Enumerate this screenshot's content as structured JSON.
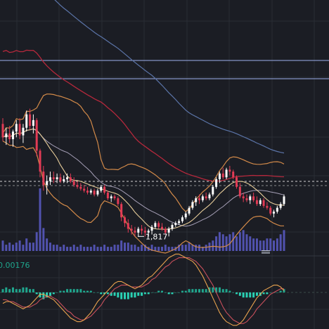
{
  "colors": {
    "background": "#1b1d24",
    "grid": "#2a2d35",
    "up": "#ffffff",
    "down": "#e23b55",
    "hist_pos": "#20a58d",
    "hist_neg": "#2ad0b3",
    "volume": "#5a5cc8",
    "ma_long": "#5b74a8",
    "ma_mid": "#b6283c",
    "bollinger": "#d38a49",
    "ma_short": "#e7cd9a",
    "ma_light": "#a59fb6",
    "macd_line": "#e8a24e",
    "signal_line": "#c9505c",
    "hline": "#9cb0ee",
    "dashed": "#d4d4d4"
  },
  "chart_data": {
    "type": "candlestick",
    "price_annotation": "1,817",
    "indicator_label": "0.00176",
    "candles": [
      {
        "o": 55,
        "h": 58,
        "l": 46,
        "c": 48
      },
      {
        "o": 48,
        "h": 53,
        "l": 44,
        "c": 50
      },
      {
        "o": 50,
        "h": 54,
        "l": 45,
        "c": 47
      },
      {
        "o": 47,
        "h": 52,
        "l": 43,
        "c": 51
      },
      {
        "o": 51,
        "h": 57,
        "l": 48,
        "c": 55
      },
      {
        "o": 55,
        "h": 58,
        "l": 47,
        "c": 49
      },
      {
        "o": 49,
        "h": 55,
        "l": 45,
        "c": 53
      },
      {
        "o": 53,
        "h": 62,
        "l": 51,
        "c": 60
      },
      {
        "o": 60,
        "h": 63,
        "l": 52,
        "c": 54
      },
      {
        "o": 54,
        "h": 60,
        "l": 50,
        "c": 57
      },
      {
        "o": 57,
        "h": 58,
        "l": 38,
        "c": 41
      },
      {
        "o": 41,
        "h": 42,
        "l": 27,
        "c": 30
      },
      {
        "o": 30,
        "h": 33,
        "l": 20,
        "c": 23
      },
      {
        "o": 23,
        "h": 28,
        "l": 18,
        "c": 25
      },
      {
        "o": 25,
        "h": 30,
        "l": 23,
        "c": 27
      },
      {
        "o": 27,
        "h": 30,
        "l": 24,
        "c": 26
      },
      {
        "o": 26,
        "h": 29,
        "l": 24,
        "c": 27
      },
      {
        "o": 27,
        "h": 29,
        "l": 24,
        "c": 25
      },
      {
        "o": 25,
        "h": 28,
        "l": 24,
        "c": 26
      },
      {
        "o": 26,
        "h": 29,
        "l": 24,
        "c": 27
      },
      {
        "o": 27,
        "h": 29,
        "l": 24,
        "c": 25
      },
      {
        "o": 25,
        "h": 27,
        "l": 22,
        "c": 23
      },
      {
        "o": 23,
        "h": 25,
        "l": 21,
        "c": 22
      },
      {
        "o": 22,
        "h": 24,
        "l": 20,
        "c": 21
      },
      {
        "o": 21,
        "h": 23,
        "l": 19,
        "c": 20
      },
      {
        "o": 20,
        "h": 22,
        "l": 18,
        "c": 19
      },
      {
        "o": 19,
        "h": 21,
        "l": 18,
        "c": 20
      },
      {
        "o": 20,
        "h": 21,
        "l": 17,
        "c": 18
      },
      {
        "o": 18,
        "h": 21,
        "l": 17,
        "c": 20
      },
      {
        "o": 20,
        "h": 23,
        "l": 19,
        "c": 22
      },
      {
        "o": 22,
        "h": 23,
        "l": 18,
        "c": 19
      },
      {
        "o": 19,
        "h": 20,
        "l": 15,
        "c": 16
      },
      {
        "o": 16,
        "h": 18,
        "l": 14,
        "c": 17
      },
      {
        "o": 17,
        "h": 18,
        "l": 15,
        "c": 16
      },
      {
        "o": 16,
        "h": 17,
        "l": 12,
        "c": 13
      },
      {
        "o": 13,
        "h": 14,
        "l": 4,
        "c": 6
      },
      {
        "o": 6,
        "h": 7,
        "l": 1,
        "c": 3
      },
      {
        "o": 3,
        "h": 5,
        "l": -2,
        "c": 0
      },
      {
        "o": 0,
        "h": 2,
        "l": -3,
        "c": -1
      },
      {
        "o": -1,
        "h": 1,
        "l": -4,
        "c": -2
      },
      {
        "o": -2,
        "h": 1,
        "l": -4,
        "c": 0
      },
      {
        "o": 0,
        "h": 2,
        "l": -3,
        "c": -1
      },
      {
        "o": -1,
        "h": 1,
        "l": -4,
        "c": -2
      },
      {
        "o": -2,
        "h": 0,
        "l": -4,
        "c": -1
      },
      {
        "o": -1,
        "h": 2,
        "l": -3,
        "c": 1
      },
      {
        "o": 1,
        "h": 4,
        "l": 0,
        "c": 3
      },
      {
        "o": 3,
        "h": 4,
        "l": 0,
        "c": 1
      },
      {
        "o": 1,
        "h": 3,
        "l": -1,
        "c": 0
      },
      {
        "o": 0,
        "h": 1,
        "l": -3,
        "c": -2
      },
      {
        "o": -2,
        "h": 1,
        "l": -4,
        "c": 0
      },
      {
        "o": 0,
        "h": 3,
        "l": -1,
        "c": 2
      },
      {
        "o": 2,
        "h": 4,
        "l": 1,
        "c": 3
      },
      {
        "o": 3,
        "h": 5,
        "l": 2,
        "c": 4
      },
      {
        "o": 4,
        "h": 7,
        "l": 3,
        "c": 6
      },
      {
        "o": 6,
        "h": 9,
        "l": 5,
        "c": 8
      },
      {
        "o": 8,
        "h": 12,
        "l": 7,
        "c": 11
      },
      {
        "o": 11,
        "h": 15,
        "l": 10,
        "c": 14
      },
      {
        "o": 14,
        "h": 17,
        "l": 12,
        "c": 16
      },
      {
        "o": 16,
        "h": 18,
        "l": 13,
        "c": 15
      },
      {
        "o": 15,
        "h": 18,
        "l": 14,
        "c": 17
      },
      {
        "o": 17,
        "h": 19,
        "l": 15,
        "c": 16
      },
      {
        "o": 16,
        "h": 19,
        "l": 15,
        "c": 18
      },
      {
        "o": 18,
        "h": 23,
        "l": 17,
        "c": 22
      },
      {
        "o": 22,
        "h": 27,
        "l": 21,
        "c": 26
      },
      {
        "o": 26,
        "h": 30,
        "l": 24,
        "c": 29
      },
      {
        "o": 29,
        "h": 32,
        "l": 26,
        "c": 27
      },
      {
        "o": 27,
        "h": 32,
        "l": 26,
        "c": 31
      },
      {
        "o": 31,
        "h": 33,
        "l": 28,
        "c": 30
      },
      {
        "o": 30,
        "h": 31,
        "l": 26,
        "c": 27
      },
      {
        "o": 27,
        "h": 28,
        "l": 21,
        "c": 22
      },
      {
        "o": 22,
        "h": 24,
        "l": 16,
        "c": 17
      },
      {
        "o": 17,
        "h": 19,
        "l": 14,
        "c": 16
      },
      {
        "o": 16,
        "h": 18,
        "l": 14,
        "c": 15
      },
      {
        "o": 15,
        "h": 18,
        "l": 13,
        "c": 17
      },
      {
        "o": 17,
        "h": 19,
        "l": 14,
        "c": 15
      },
      {
        "o": 15,
        "h": 17,
        "l": 12,
        "c": 13
      },
      {
        "o": 13,
        "h": 16,
        "l": 12,
        "c": 15
      },
      {
        "o": 15,
        "h": 16,
        "l": 11,
        "c": 12
      },
      {
        "o": 12,
        "h": 14,
        "l": 10,
        "c": 11
      },
      {
        "o": 11,
        "h": 12,
        "l": 7,
        "c": 8
      },
      {
        "o": 8,
        "h": 10,
        "l": 6,
        "c": 9
      },
      {
        "o": 9,
        "h": 12,
        "l": 8,
        "c": 11
      },
      {
        "o": 11,
        "h": 14,
        "l": 10,
        "c": 13
      },
      {
        "o": 13,
        "h": 18,
        "l": 12,
        "c": 17
      }
    ],
    "volume": [
      5,
      3,
      4,
      3,
      4,
      5,
      3,
      6,
      4,
      4,
      9,
      30,
      11,
      6,
      4,
      3,
      3,
      2,
      3,
      2,
      2,
      3,
      2,
      3,
      2,
      2,
      2,
      3,
      2,
      2,
      3,
      2,
      2,
      3,
      3,
      5,
      4,
      4,
      3,
      3,
      2,
      3,
      3,
      2,
      3,
      2,
      2,
      2,
      3,
      2,
      2,
      2,
      3,
      3,
      3,
      4,
      3,
      3,
      3,
      2,
      3,
      4,
      5,
      7,
      9,
      8,
      7,
      8,
      9,
      7,
      9,
      10,
      8,
      7,
      6,
      6,
      5,
      5,
      6,
      6,
      5,
      6,
      8,
      10
    ],
    "macd_hist": [
      2,
      3,
      2,
      3,
      2,
      2,
      3,
      3,
      2,
      2,
      -1,
      -3,
      -4,
      -3,
      -2,
      -1,
      0,
      1,
      1,
      2,
      2,
      2,
      2,
      2,
      1,
      1,
      1,
      0,
      0,
      -1,
      -1,
      -1,
      -2,
      -2,
      -3,
      -4,
      -4,
      -4,
      -3,
      -3,
      -2,
      -2,
      -1,
      -1,
      0,
      0,
      1,
      1,
      0,
      -1,
      -1,
      0,
      0,
      1,
      1,
      2,
      2,
      2,
      2,
      2,
      2,
      3,
      3,
      3,
      3,
      2,
      2,
      1,
      0,
      -1,
      -2,
      -3,
      -3,
      -3,
      -3,
      -2,
      -2,
      -1,
      -1,
      0,
      0,
      0,
      1,
      2
    ],
    "macd_line": [
      -6,
      -5,
      -5,
      -6,
      -7,
      -8,
      -9,
      -8,
      -7,
      -5,
      -3,
      -1,
      -1,
      -2,
      -3,
      -4,
      -6,
      -8,
      -10,
      -12,
      -14,
      -15,
      -16,
      -16,
      -15,
      -13,
      -11,
      -8,
      -5,
      -3,
      -1,
      1,
      3,
      5,
      6,
      6,
      5,
      4,
      3,
      2,
      3,
      4,
      6,
      8,
      9,
      11,
      13,
      15,
      17,
      19,
      20,
      21,
      21,
      20,
      19,
      18,
      17,
      15,
      12,
      9,
      5,
      1,
      -3,
      -7,
      -11,
      -14,
      -16,
      -17,
      -18,
      -18,
      -17,
      -15,
      -12,
      -9,
      -6,
      -3,
      -1,
      1,
      2,
      3,
      4,
      4,
      3,
      1
    ],
    "signal_line": [
      -4,
      -4,
      -5,
      -5,
      -6,
      -7,
      -8,
      -8,
      -8,
      -7,
      -6,
      -4,
      -3,
      -2,
      -2,
      -3,
      -4,
      -6,
      -8,
      -10,
      -11,
      -13,
      -14,
      -15,
      -15,
      -14,
      -13,
      -11,
      -9,
      -7,
      -4,
      -2,
      0,
      2,
      3,
      4,
      4,
      4,
      3,
      3,
      3,
      3,
      4,
      5,
      7,
      8,
      10,
      12,
      14,
      15,
      17,
      18,
      19,
      19,
      19,
      19,
      18,
      17,
      15,
      13,
      10,
      7,
      4,
      0,
      -4,
      -8,
      -11,
      -13,
      -15,
      -16,
      -17,
      -17,
      -16,
      -14,
      -12,
      -9,
      -7,
      -5,
      -3,
      -1,
      0,
      1,
      2,
      2
    ]
  }
}
